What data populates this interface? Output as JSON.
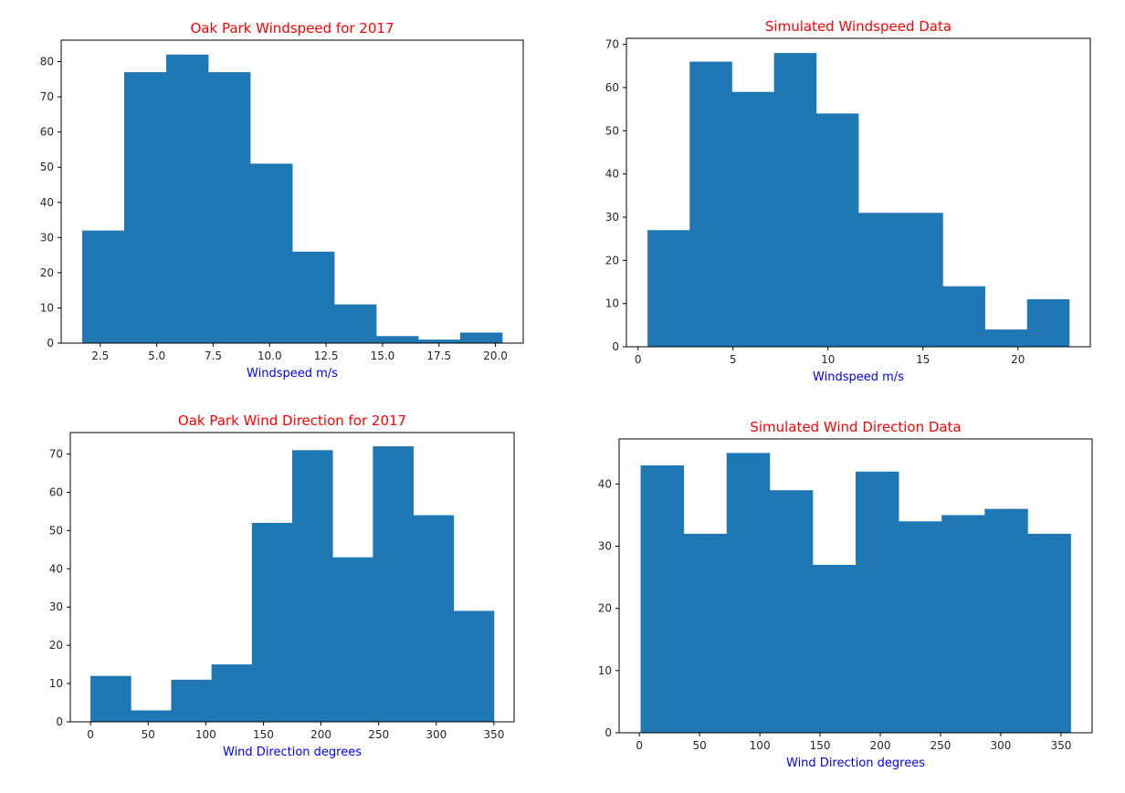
{
  "colors": {
    "bars": "#1f77b4",
    "title": "#ff0000",
    "xlabel": "#0000ff",
    "axes": "#000000"
  },
  "chart_data": [
    {
      "type": "bar",
      "title": "Oak Park Windspeed for 2017",
      "xlabel": "Windspeed m/s",
      "ylabel": "",
      "bin_edges": [
        1.7,
        3.56,
        5.42,
        7.28,
        9.14,
        11.0,
        12.86,
        14.72,
        16.58,
        18.44,
        20.3
      ],
      "values": [
        32,
        77,
        82,
        77,
        51,
        26,
        11,
        2,
        1,
        3
      ],
      "xlim": [
        0.77,
        21.23
      ],
      "ylim": [
        0,
        86.1
      ],
      "xticks": [
        2.5,
        5.0,
        7.5,
        10.0,
        12.5,
        15.0,
        17.5,
        20.0
      ],
      "xtick_labels": [
        "2.5",
        "5.0",
        "7.5",
        "10.0",
        "12.5",
        "15.0",
        "17.5",
        "20.0"
      ],
      "yticks": [
        0,
        10,
        20,
        30,
        40,
        50,
        60,
        70,
        80
      ],
      "ytick_labels": [
        "0",
        "10",
        "20",
        "30",
        "40",
        "50",
        "60",
        "70",
        "80"
      ],
      "grid": false
    },
    {
      "type": "bar",
      "title": "Simulated Windspeed Data",
      "xlabel": "Windspeed m/s",
      "ylabel": "",
      "bin_edges": [
        0.5,
        2.72,
        4.94,
        7.16,
        9.38,
        11.6,
        13.82,
        16.04,
        18.26,
        20.48,
        22.7
      ],
      "values": [
        27,
        66,
        59,
        68,
        54,
        31,
        31,
        14,
        4,
        11
      ],
      "xlim": [
        -0.61,
        23.81
      ],
      "ylim": [
        0,
        71.4
      ],
      "xticks": [
        0,
        5,
        10,
        15,
        20
      ],
      "xtick_labels": [
        "0",
        "5",
        "10",
        "15",
        "20"
      ],
      "yticks": [
        0,
        10,
        20,
        30,
        40,
        50,
        60,
        70
      ],
      "ytick_labels": [
        "0",
        "10",
        "20",
        "30",
        "40",
        "50",
        "60",
        "70"
      ],
      "grid": false
    },
    {
      "type": "bar",
      "title": "Oak Park Wind Direction for 2017",
      "xlabel": "Wind Direction degrees",
      "ylabel": "",
      "bin_edges": [
        0,
        35,
        70,
        105,
        140,
        175,
        210,
        245,
        280,
        315,
        350
      ],
      "values": [
        12,
        3,
        11,
        15,
        52,
        71,
        43,
        72,
        54,
        29
      ],
      "xlim": [
        -17.5,
        367.5
      ],
      "ylim": [
        0,
        75.6
      ],
      "xticks": [
        0,
        50,
        100,
        150,
        200,
        250,
        300,
        350
      ],
      "xtick_labels": [
        "0",
        "50",
        "100",
        "150",
        "200",
        "250",
        "300",
        "350"
      ],
      "yticks": [
        0,
        10,
        20,
        30,
        40,
        50,
        60,
        70
      ],
      "ytick_labels": [
        "0",
        "10",
        "20",
        "30",
        "40",
        "50",
        "60",
        "70"
      ],
      "grid": false
    },
    {
      "type": "bar",
      "title": "Simulated Wind Direction Data",
      "xlabel": "Wind Direction degrees",
      "ylabel": "",
      "bin_edges": [
        1,
        36.7,
        72.4,
        108.1,
        143.8,
        179.5,
        215.2,
        250.9,
        286.6,
        322.3,
        358
      ],
      "values": [
        43,
        32,
        45,
        39,
        27,
        42,
        34,
        35,
        36,
        32
      ],
      "xlim": [
        -16.85,
        375.85
      ],
      "ylim": [
        0,
        47.25
      ],
      "xticks": [
        0,
        50,
        100,
        150,
        200,
        250,
        300,
        350
      ],
      "xtick_labels": [
        "0",
        "50",
        "100",
        "150",
        "200",
        "250",
        "300",
        "350"
      ],
      "yticks": [
        0,
        10,
        20,
        30,
        40
      ],
      "ytick_labels": [
        "0",
        "10",
        "20",
        "30",
        "40"
      ],
      "grid": false
    }
  ]
}
